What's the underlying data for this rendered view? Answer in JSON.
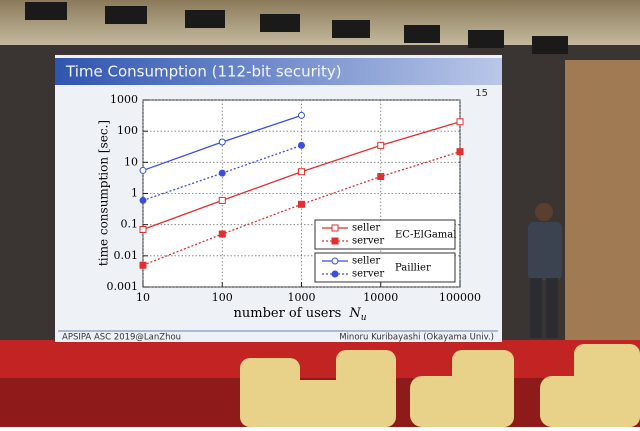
{
  "slide": {
    "title": "Time Consumption (112-bit security)",
    "page_number": "15",
    "footer_left": "APSIPA ASC 2019@LanZhou",
    "footer_right": "Minoru Kuribayashi (Okayama Univ.)"
  },
  "chart_data": {
    "type": "line",
    "y_label": "time consumption [sec.]",
    "x_label": "number of users",
    "x_label_symbol": "N",
    "x_label_subscript": "u",
    "x": [
      10,
      100,
      1000,
      10000,
      100000
    ],
    "xlim": [
      10,
      100000
    ],
    "xticks": [
      10,
      100,
      1000,
      10000,
      100000
    ],
    "x_log": true,
    "ylim": [
      0.001,
      1000
    ],
    "yticks": [
      0.001,
      0.01,
      0.1,
      1,
      10,
      100,
      1000
    ],
    "y_log": true,
    "grid": true,
    "legend_groups": [
      "EC-ElGamal",
      "Paillier"
    ],
    "series": [
      {
        "name": "seller",
        "group": 0,
        "color": "#e03030",
        "dashed": false,
        "filled": false,
        "marker": "square",
        "values": [
          0.07,
          0.6,
          5,
          35,
          200
        ]
      },
      {
        "name": "server",
        "group": 0,
        "color": "#e03030",
        "dashed": true,
        "filled": true,
        "marker": "square",
        "values": [
          0.005,
          0.05,
          0.45,
          3.5,
          22
        ]
      },
      {
        "name": "seller",
        "group": 1,
        "color": "#3a4ee0",
        "dashed": false,
        "filled": false,
        "marker": "circle",
        "values": [
          5.5,
          45,
          320,
          null,
          null
        ]
      },
      {
        "name": "server",
        "group": 1,
        "color": "#3a4ee0",
        "dashed": true,
        "filled": true,
        "marker": "circle",
        "values": [
          0.6,
          4.5,
          35,
          null,
          null
        ]
      }
    ]
  }
}
